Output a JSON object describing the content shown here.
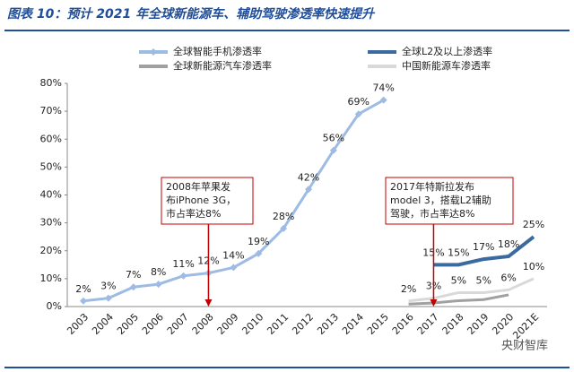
{
  "chart_data": {
    "type": "line",
    "title": "图表 10：预计 2021 年全球新能源车、辅助驾驶渗透率快速提升",
    "categories": [
      "2003",
      "2004",
      "2005",
      "2006",
      "2007",
      "2008",
      "2009",
      "2010",
      "2011",
      "2012",
      "2013",
      "2014",
      "2015",
      "2016",
      "2017",
      "2018",
      "2019",
      "2020",
      "2021E"
    ],
    "ylim": [
      0,
      80
    ],
    "yticks": [
      {
        "value": 0,
        "label": "0%"
      },
      {
        "value": 10,
        "label": "10%"
      },
      {
        "value": 20,
        "label": "20%"
      },
      {
        "value": 30,
        "label": "30%"
      },
      {
        "value": 40,
        "label": "40%"
      },
      {
        "value": 50,
        "label": "50%"
      },
      {
        "value": 60,
        "label": "60%"
      },
      {
        "value": 70,
        "label": "70%"
      },
      {
        "value": 80,
        "label": "80%"
      }
    ],
    "series": [
      {
        "name": "全球智能手机渗透率",
        "color": "#9dbbe3",
        "marker": "diamond",
        "values": [
          2,
          3,
          7,
          8,
          11,
          12,
          14,
          19,
          28,
          42,
          56,
          69,
          74,
          null,
          null,
          null,
          null,
          null,
          null
        ],
        "value_labels": [
          "2%",
          "3%",
          "7%",
          "8%",
          "11%",
          "12%",
          "14%",
          "19%",
          "28%",
          "42%",
          "56%",
          "69%",
          "74%",
          null,
          null,
          null,
          null,
          null,
          null
        ]
      },
      {
        "name": "全球L2及以上渗透率",
        "color": "#3a6aa0",
        "values": [
          null,
          null,
          null,
          null,
          null,
          null,
          null,
          null,
          null,
          null,
          null,
          null,
          null,
          null,
          15,
          15,
          17,
          18,
          25
        ],
        "value_labels": [
          null,
          null,
          null,
          null,
          null,
          null,
          null,
          null,
          null,
          null,
          null,
          null,
          null,
          null,
          "15%",
          "15%",
          "17%",
          "18%",
          "25%"
        ]
      },
      {
        "name": "全球新能源汽车渗透率",
        "color": "#a0a0a0",
        "values": [
          null,
          null,
          null,
          null,
          null,
          null,
          null,
          null,
          null,
          null,
          null,
          null,
          null,
          0.9,
          1.3,
          2.1,
          2.5,
          4.2,
          null
        ]
      },
      {
        "name": "中国新能源车渗透率",
        "color": "#d9d9d9",
        "values": [
          null,
          null,
          null,
          null,
          null,
          null,
          null,
          null,
          null,
          null,
          null,
          null,
          null,
          2,
          3,
          5,
          5,
          6,
          10
        ],
        "value_labels": [
          null,
          null,
          null,
          null,
          null,
          null,
          null,
          null,
          null,
          null,
          null,
          null,
          null,
          "2%",
          "3%",
          "5%",
          "5%",
          "6%",
          "10%"
        ]
      }
    ],
    "annotations": [
      {
        "lines": [
          "2008年苹果发",
          "布iPhone 3G，",
          "市占率达8%"
        ],
        "category": 5
      },
      {
        "lines": [
          "2017年特斯拉发布",
          "model 3，搭载L2辅助",
          "驾驶，市占率达8%"
        ],
        "category": 14
      }
    ],
    "watermark": "央财智库"
  }
}
